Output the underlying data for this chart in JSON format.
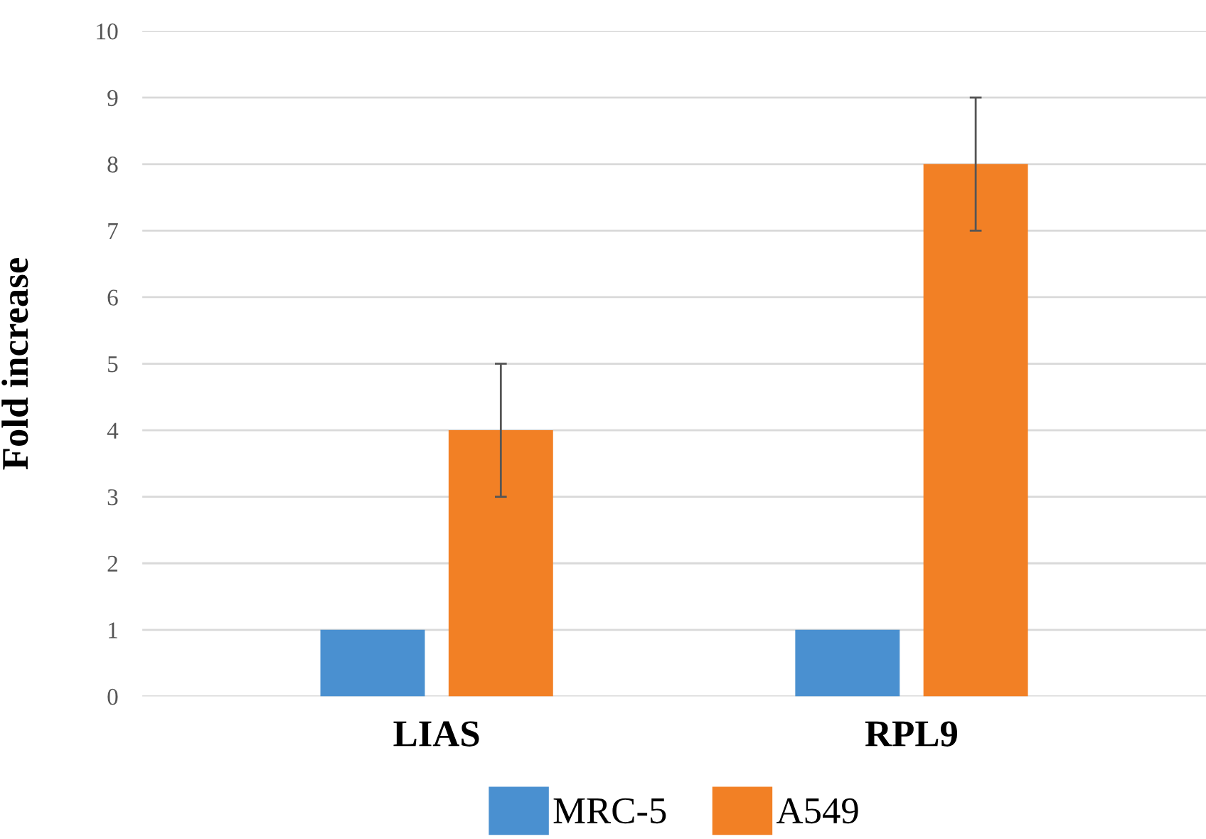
{
  "chart_data": {
    "type": "bar",
    "ylabel": "Fold increase",
    "categories": [
      "LIAS",
      "RPL9"
    ],
    "series": [
      {
        "name": "MRC-5",
        "color": "#4a90d0",
        "values": [
          1,
          1
        ]
      },
      {
        "name": "A549",
        "color": "#f28025",
        "values": [
          4,
          8
        ],
        "errors": [
          1,
          1
        ]
      }
    ],
    "ylim": [
      0,
      10
    ],
    "yticks": [
      0,
      1,
      2,
      3,
      4,
      5,
      6,
      7,
      8,
      9,
      10
    ],
    "grid": "y",
    "legend": "bottom"
  }
}
